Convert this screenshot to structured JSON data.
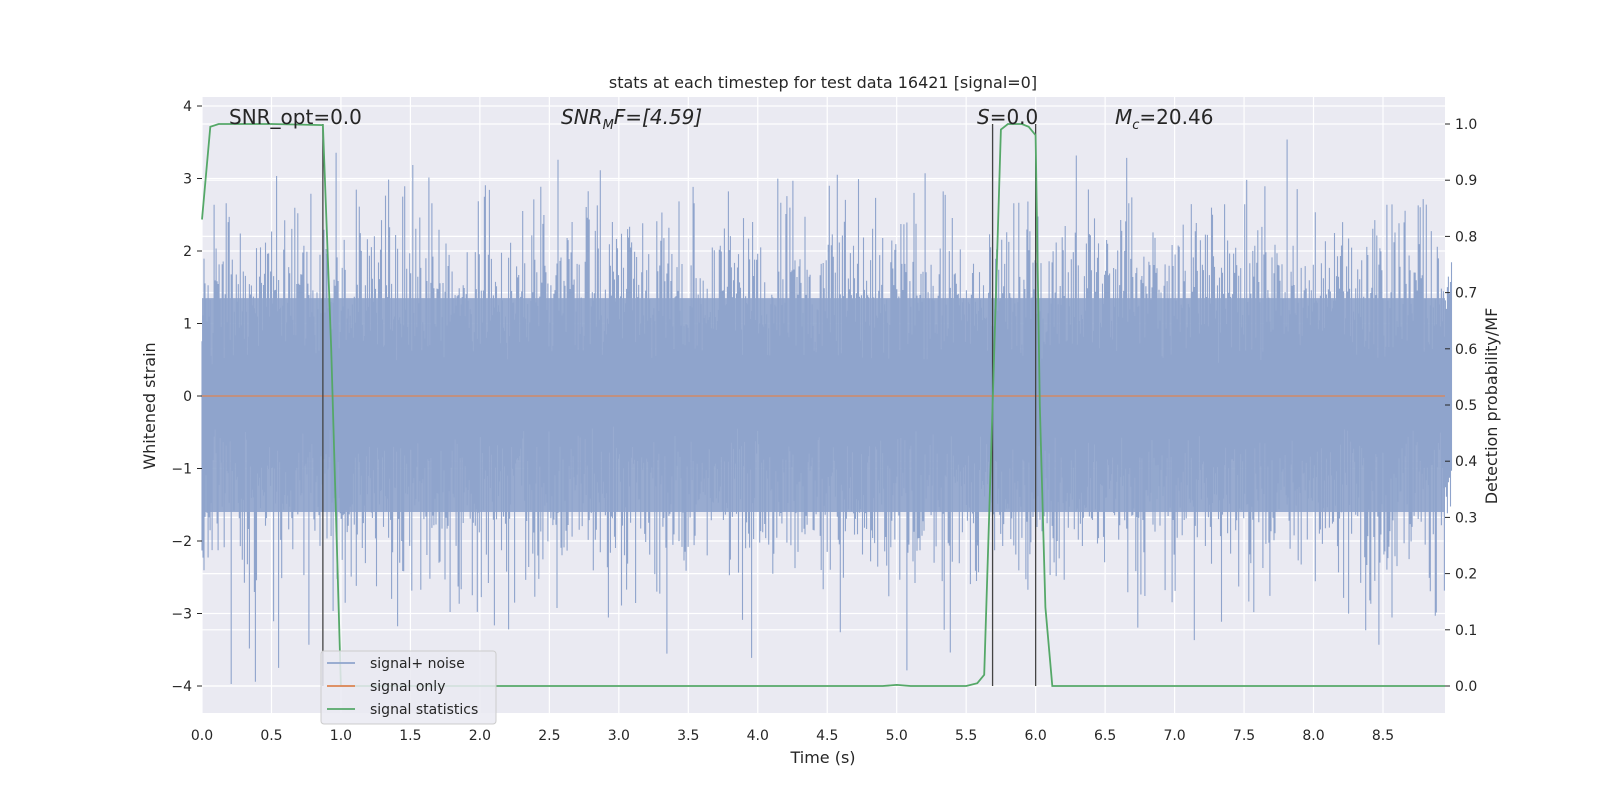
{
  "chart_data": {
    "type": "line",
    "title": "stats at each timestep for test data 16421 [signal=0]",
    "xlabel": "Time (s)",
    "ylabel_left": "Whitened strain",
    "ylabel_right": "Detection probability/MF",
    "xlim": [
      0.0,
      9.0
    ],
    "ylim_left": [
      -4.35,
      4.1
    ],
    "ylim_right": [
      -0.045,
      1.035
    ],
    "x_ticks": [
      "0.0",
      "0.5",
      "1.0",
      "1.5",
      "2.0",
      "2.5",
      "3.0",
      "3.5",
      "4.0",
      "4.5",
      "5.0",
      "5.5",
      "6.0",
      "6.5",
      "7.0",
      "7.5",
      "8.0",
      "8.5"
    ],
    "y_left_ticks": [
      "4",
      "3",
      "2",
      "1",
      "0",
      "−1",
      "−2",
      "−3",
      "−4"
    ],
    "y_right_ticks": [
      "1.0",
      "0.9",
      "0.8",
      "0.7",
      "0.6",
      "0.5",
      "0.4",
      "0.3",
      "0.2",
      "0.1",
      "0.0"
    ],
    "grid": true,
    "legend_position": "lower-left",
    "annotations": {
      "snr_opt": "SNR_opt=0.0",
      "snr_mf_label": "SNR",
      "snr_mf_sub": "M",
      "snr_mf_value": "F=[4.59]",
      "s_label": "S",
      "s_value": "=0.0",
      "mc_label": "M",
      "mc_sub": "c",
      "mc_value": "=20.46"
    },
    "vertical_lines_x": [
      0.87,
      5.69,
      6.0
    ],
    "series": [
      {
        "name": "signal+ noise",
        "color": "#8fa4cc",
        "axis": "left",
        "description_values": "whitened noise, approx gaussian, sigma ~1, range -4 to 3.7"
      },
      {
        "name": "signal only",
        "color": "#dd8452",
        "axis": "left",
        "x": [
          0.0,
          9.0
        ],
        "y": [
          0.0,
          0.0
        ]
      },
      {
        "name": "signal statistics",
        "color": "#55a868",
        "axis": "right",
        "x": [
          0.0,
          0.06,
          0.12,
          0.5,
          0.87,
          0.93,
          1.0,
          1.5,
          2.0,
          3.0,
          4.0,
          4.9,
          5.0,
          5.1,
          5.5,
          5.58,
          5.63,
          5.69,
          5.75,
          5.8,
          5.9,
          5.95,
          6.0,
          6.03,
          6.07,
          6.12,
          7.0,
          8.0,
          9.0
        ],
        "y": [
          0.83,
          0.995,
          1.0,
          1.0,
          0.998,
          0.6,
          0.0,
          0.0,
          0.0,
          0.0,
          0.0,
          0.0,
          0.002,
          0.0,
          0.0,
          0.005,
          0.02,
          0.5,
          0.99,
          1.0,
          1.0,
          0.995,
          0.98,
          0.5,
          0.14,
          0.0,
          0.0,
          0.0,
          0.0
        ]
      }
    ]
  }
}
